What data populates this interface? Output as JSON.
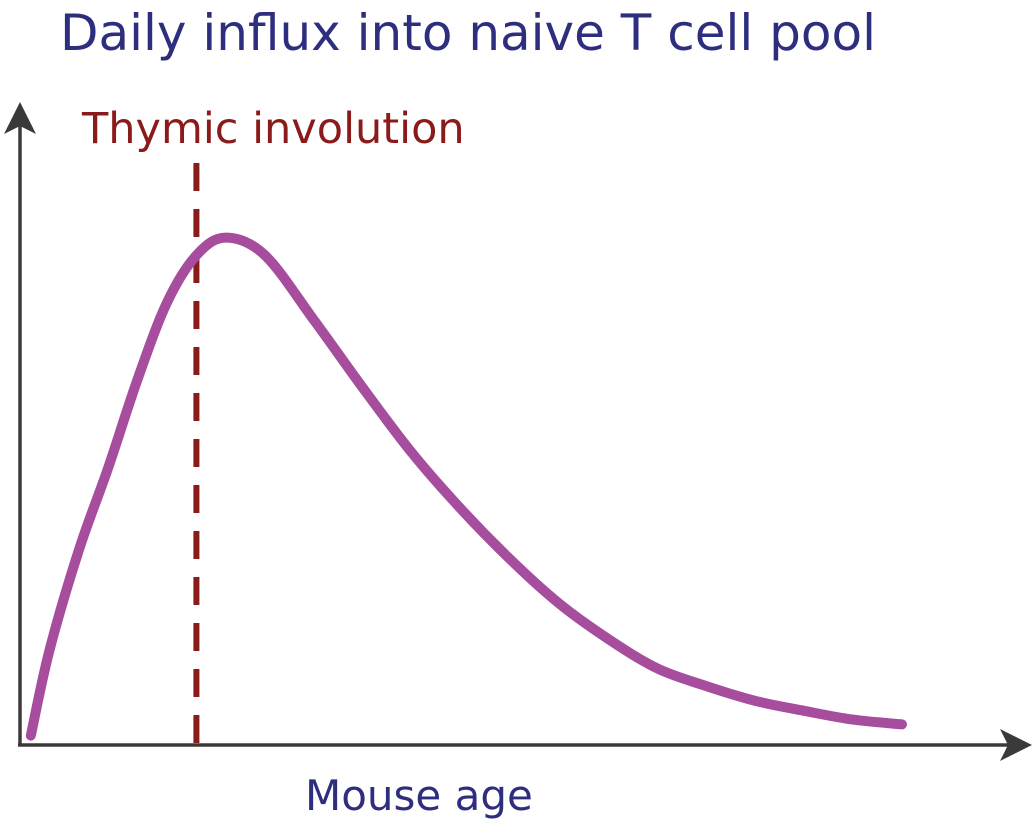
{
  "chart_data": {
    "type": "line",
    "title": "Daily influx into naive T cell pool",
    "xlabel": "Mouse age",
    "ylabel": "",
    "grid": false,
    "legend": "none",
    "x_ticks": false,
    "y_ticks": false,
    "xlim": [
      0,
      100
    ],
    "ylim": [
      0,
      100
    ],
    "series": [
      {
        "name": "",
        "color": "#a64d9e",
        "x": [
          1.1,
          3,
          6,
          9,
          12,
          15,
          18,
          21,
          25,
          30,
          35,
          40,
          45,
          50,
          55,
          60,
          65,
          70,
          75,
          80,
          85,
          90
        ],
        "y": [
          1.6,
          16,
          33,
          47,
          62,
          75,
          83,
          86,
          83,
          72,
          60.5,
          49.5,
          40,
          31.5,
          24,
          18,
          13,
          10,
          7.5,
          5.8,
          4.3,
          3.5
        ]
      }
    ],
    "annotations": [
      {
        "type": "vline",
        "x": 18,
        "label": "Thymic involution",
        "color": "#8b1a1a",
        "style": "dashed"
      }
    ]
  },
  "colors": {
    "title": "#2e2e7e",
    "axis": "#3a3a3a",
    "xlabel": "#2e2e7e"
  }
}
